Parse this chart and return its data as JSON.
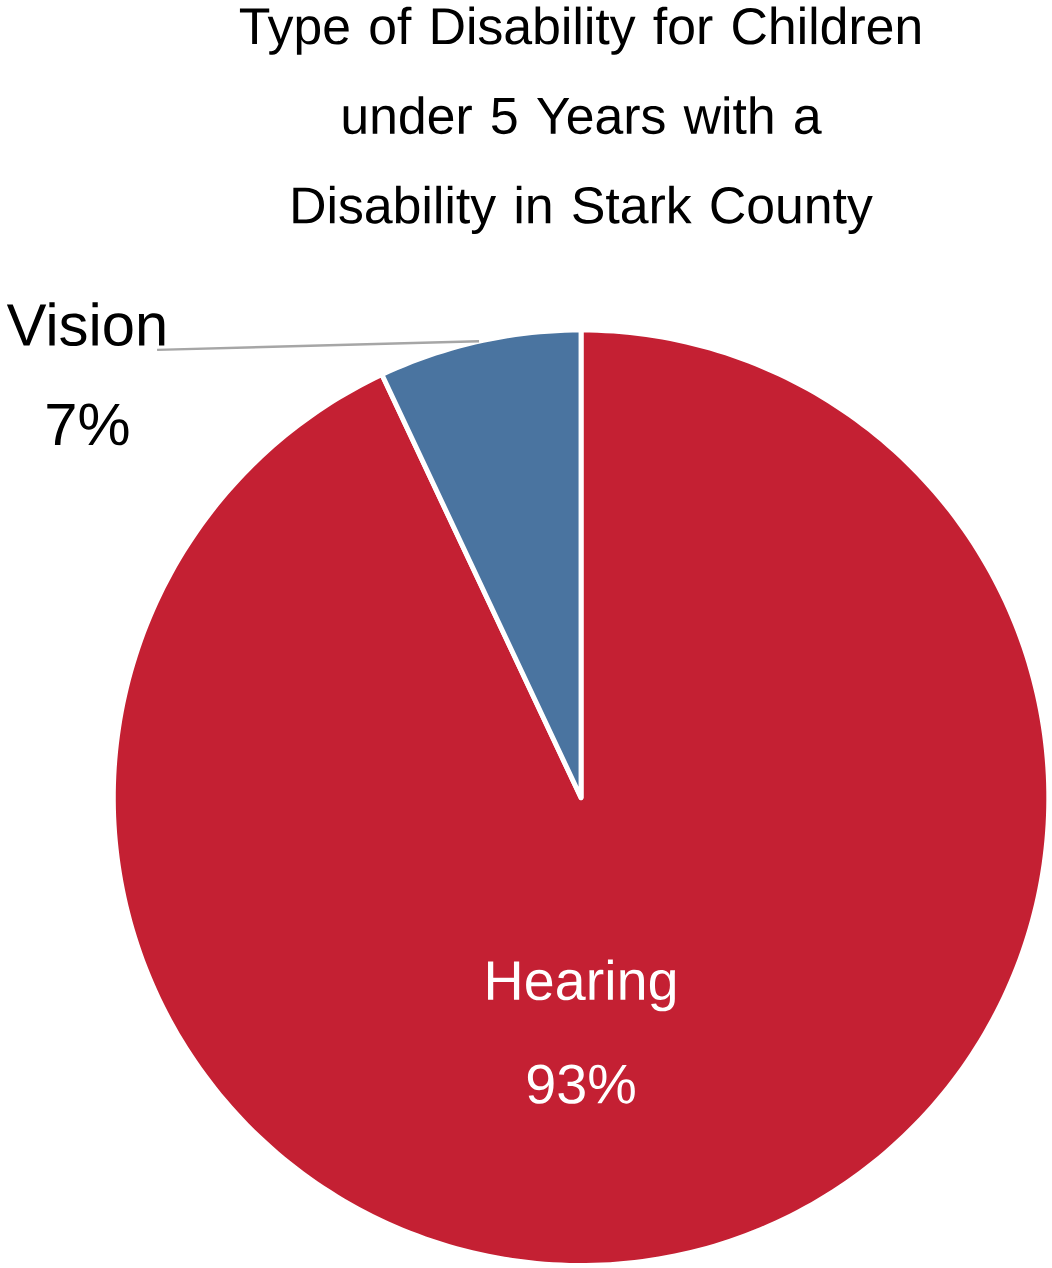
{
  "chart_data": {
    "type": "pie",
    "title": "Type of Disability for Children under 5 Years with a Disability in Stark County",
    "categories": [
      "Hearing",
      "Vision"
    ],
    "values": [
      93,
      7
    ],
    "value_labels": [
      "93%",
      "7%"
    ],
    "colors": [
      "#c42033",
      "#4a74a0"
    ]
  }
}
